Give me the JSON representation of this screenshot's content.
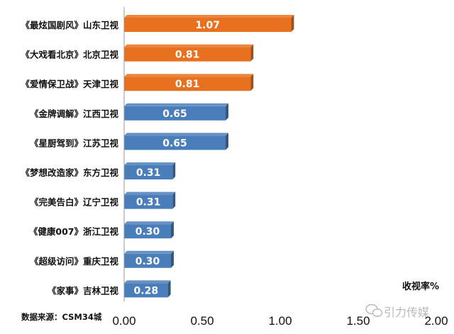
{
  "chart_data": {
    "type": "bar",
    "orientation": "horizontal",
    "categories": [
      "《最炫国剧风》山东卫视",
      "《大戏看北京》北京卫视",
      "《爱情保卫战》天津卫视",
      "《金牌调解》江西卫视",
      "《星厨驾到》江苏卫视",
      "《梦想改造家》东方卫视",
      "《完美告白》辽宁卫视",
      "《健康007》浙江卫视",
      "《超级访问》重庆卫视",
      "《家事》吉林卫视"
    ],
    "values": [
      1.07,
      0.81,
      0.81,
      0.65,
      0.65,
      0.31,
      0.31,
      0.3,
      0.3,
      0.28
    ],
    "value_labels": [
      "1.07",
      "0.81",
      "0.81",
      "0.65",
      "0.65",
      "0.31",
      "0.31",
      "0.30",
      "0.30",
      "0.28"
    ],
    "xlabel": "收视率%",
    "ylabel": "",
    "xlim": [
      0,
      2
    ],
    "x_ticks": [
      "0.00",
      "0.50",
      "1.00",
      "1.50",
      "2.00"
    ],
    "grid": false,
    "colors": {
      "highlight": "#E8711F",
      "normal": "#4A7EBB",
      "highlight_count": 3
    }
  },
  "source": "数据来源：CSM34城",
  "watermark": "引力传媒"
}
